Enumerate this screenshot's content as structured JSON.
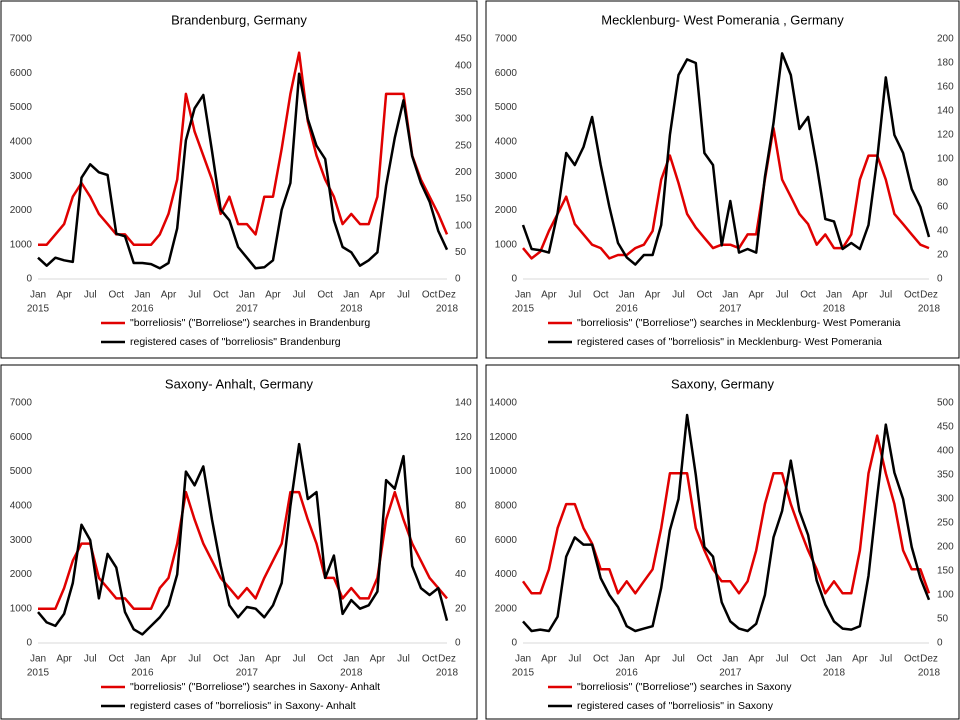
{
  "chart_data": [
    {
      "type": "line",
      "title": "Brandenburg, Germany",
      "categories": [
        "Jan",
        null,
        null,
        "Apr",
        null,
        null,
        "Jul",
        null,
        null,
        "Oct",
        null,
        null,
        "Jan",
        null,
        null,
        "Apr",
        null,
        null,
        "Jul",
        null,
        null,
        "Oct",
        null,
        null,
        "Jan",
        null,
        null,
        "Apr",
        null,
        null,
        "Jul",
        null,
        null,
        "Oct",
        null,
        null,
        "Jan",
        null,
        null,
        "Apr",
        null,
        null,
        "Jul",
        null,
        null,
        "Oct",
        null,
        "Dez"
      ],
      "category_years": [
        "2015",
        null,
        null,
        null,
        null,
        null,
        null,
        null,
        null,
        null,
        null,
        null,
        "2016",
        null,
        null,
        null,
        null,
        null,
        null,
        null,
        null,
        null,
        null,
        null,
        "2017",
        null,
        null,
        null,
        null,
        null,
        null,
        null,
        null,
        null,
        null,
        null,
        "2018",
        null,
        null,
        null,
        null,
        null,
        null,
        null,
        null,
        null,
        null,
        "2018"
      ],
      "ylim": [
        0,
        7000
      ],
      "yticks": [
        0,
        1000,
        2000,
        3000,
        4000,
        5000,
        6000,
        7000
      ],
      "y2lim": [
        0,
        450
      ],
      "y2ticks": [
        0,
        50,
        100,
        150,
        200,
        250,
        300,
        350,
        400,
        450
      ],
      "series": [
        {
          "name": "\"borreliosis\" (\"Borreliose\") searches in Brandenburg",
          "color": "#e00000",
          "values": [
            1000,
            1000,
            1300,
            1600,
            2400,
            2800,
            2400,
            1900,
            1600,
            1300,
            1300,
            1000,
            1000,
            1000,
            1300,
            1900,
            2900,
            5400,
            4300,
            3600,
            2900,
            1900,
            2400,
            1600,
            1600,
            1300,
            2400,
            2400,
            3800,
            5400,
            6600,
            4600,
            3600,
            2900,
            2400,
            1600,
            1900,
            1600,
            1600,
            2400,
            5400,
            5400,
            5400,
            3600,
            2900,
            2400,
            1900,
            1300
          ]
        },
        {
          "name": "registered cases of \"borreliosis\" Brandenburg",
          "color": "#000000",
          "axis": "y2",
          "values": [
            40,
            25,
            40,
            35,
            32,
            190,
            215,
            200,
            195,
            85,
            80,
            30,
            30,
            28,
            20,
            30,
            95,
            260,
            320,
            345,
            240,
            130,
            110,
            60,
            40,
            20,
            22,
            35,
            130,
            180,
            385,
            300,
            250,
            225,
            110,
            60,
            50,
            25,
            35,
            50,
            175,
            265,
            335,
            230,
            180,
            145,
            90,
            55
          ]
        }
      ]
    },
    {
      "type": "line",
      "title": "Mecklenburg- West Pomerania , Germany",
      "categories": [
        "Jan",
        null,
        null,
        "Apr",
        null,
        null,
        "Jul",
        null,
        null,
        "Oct",
        null,
        null,
        "Jan",
        null,
        null,
        "Apr",
        null,
        null,
        "Jul",
        null,
        null,
        "Oct",
        null,
        null,
        "Jan",
        null,
        null,
        "Apr",
        null,
        null,
        "Jul",
        null,
        null,
        "Oct",
        null,
        null,
        "Jan",
        null,
        null,
        "Apr",
        null,
        null,
        "Jul",
        null,
        null,
        "Oct",
        null,
        "Dez"
      ],
      "category_years": [
        "2015",
        null,
        null,
        null,
        null,
        null,
        null,
        null,
        null,
        null,
        null,
        null,
        "2016",
        null,
        null,
        null,
        null,
        null,
        null,
        null,
        null,
        null,
        null,
        null,
        "2017",
        null,
        null,
        null,
        null,
        null,
        null,
        null,
        null,
        null,
        null,
        null,
        "2018",
        null,
        null,
        null,
        null,
        null,
        null,
        null,
        null,
        null,
        null,
        "2018"
      ],
      "ylim": [
        0,
        7000
      ],
      "yticks": [
        0,
        1000,
        2000,
        3000,
        4000,
        5000,
        6000,
        7000
      ],
      "y2lim": [
        0,
        200
      ],
      "y2ticks": [
        0,
        20,
        40,
        60,
        80,
        100,
        120,
        140,
        160,
        180,
        200
      ],
      "series": [
        {
          "name": "\"borreliosis\" (\"Borreliose\") searches in Mecklenburg- West Pomerania",
          "color": "#e00000",
          "values": [
            900,
            600,
            800,
            1400,
            1900,
            2400,
            1600,
            1300,
            1000,
            900,
            600,
            700,
            700,
            900,
            1000,
            1400,
            2900,
            3600,
            2800,
            1900,
            1500,
            1200,
            900,
            1000,
            1000,
            900,
            1300,
            1300,
            2900,
            4400,
            2900,
            2400,
            1900,
            1600,
            1000,
            1300,
            900,
            900,
            1300,
            2900,
            3600,
            3600,
            2900,
            1900,
            1600,
            1300,
            1000,
            900
          ]
        },
        {
          "name": "registered cases of \"borreliosis\" in Mecklenburg- West Pomerania",
          "color": "#000000",
          "axis": "y2",
          "values": [
            45,
            25,
            24,
            22,
            55,
            105,
            95,
            110,
            135,
            95,
            60,
            30,
            18,
            12,
            20,
            20,
            45,
            120,
            170,
            183,
            180,
            105,
            95,
            28,
            65,
            22,
            25,
            22,
            85,
            130,
            188,
            170,
            125,
            135,
            95,
            50,
            48,
            25,
            30,
            25,
            45,
            100,
            168,
            120,
            105,
            75,
            60,
            35
          ]
        }
      ]
    },
    {
      "type": "line",
      "title": "Saxony- Anhalt, Germany",
      "categories": [
        "Jan",
        null,
        null,
        "Apr",
        null,
        null,
        "Jul",
        null,
        null,
        "Oct",
        null,
        null,
        "Jan",
        null,
        null,
        "Apr",
        null,
        null,
        "Jul",
        null,
        null,
        "Oct",
        null,
        null,
        "Jan",
        null,
        null,
        "Apr",
        null,
        null,
        "Jul",
        null,
        null,
        "Oct",
        null,
        null,
        "Jan",
        null,
        null,
        "Apr",
        null,
        null,
        "Jul",
        null,
        null,
        "Oct",
        null,
        "Dez"
      ],
      "category_years": [
        "2015",
        null,
        null,
        null,
        null,
        null,
        null,
        null,
        null,
        null,
        null,
        null,
        "2016",
        null,
        null,
        null,
        null,
        null,
        null,
        null,
        null,
        null,
        null,
        null,
        "2017",
        null,
        null,
        null,
        null,
        null,
        null,
        null,
        null,
        null,
        null,
        null,
        "2018",
        null,
        null,
        null,
        null,
        null,
        null,
        null,
        null,
        null,
        null,
        "2018"
      ],
      "ylim": [
        0,
        7000
      ],
      "yticks": [
        0,
        1000,
        2000,
        3000,
        4000,
        5000,
        6000,
        7000
      ],
      "y2lim": [
        0,
        140
      ],
      "y2ticks": [
        0,
        20,
        40,
        60,
        80,
        100,
        120,
        140
      ],
      "series": [
        {
          "name": "\"borreliosis\" (\"Borreliose\") searches in Saxony- Anhalt",
          "color": "#e00000",
          "values": [
            1000,
            1000,
            1000,
            1600,
            2400,
            2900,
            2900,
            1900,
            1600,
            1300,
            1300,
            1000,
            1000,
            1000,
            1600,
            1900,
            2900,
            4400,
            3600,
            2900,
            2400,
            1900,
            1600,
            1300,
            1600,
            1300,
            1900,
            2400,
            2900,
            4400,
            4400,
            3600,
            2900,
            1900,
            1900,
            1300,
            1600,
            1300,
            1300,
            1900,
            3600,
            4400,
            3600,
            2900,
            2400,
            1900,
            1600,
            1300
          ]
        },
        {
          "name": "registerd cases of \"borreliosis\" in Saxony- Anhalt",
          "color": "#000000",
          "axis": "y2",
          "values": [
            18,
            12,
            10,
            17,
            35,
            69,
            60,
            26,
            52,
            44,
            18,
            8,
            5,
            10,
            15,
            22,
            40,
            100,
            92,
            103,
            72,
            45,
            22,
            15,
            21,
            20,
            15,
            22,
            35,
            80,
            116,
            84,
            88,
            38,
            51,
            17,
            25,
            20,
            22,
            30,
            95,
            90,
            109,
            45,
            32,
            28,
            32,
            13
          ]
        }
      ]
    },
    {
      "type": "line",
      "title": "Saxony, Germany",
      "categories": [
        "Jan",
        null,
        null,
        "Apr",
        null,
        null,
        "Jul",
        null,
        null,
        "Oct",
        null,
        null,
        "Jan",
        null,
        null,
        "Apr",
        null,
        null,
        "Jul",
        null,
        null,
        "Oct",
        null,
        null,
        "Jan",
        null,
        null,
        "Apr",
        null,
        null,
        "Jul",
        null,
        null,
        "Oct",
        null,
        null,
        "Jan",
        null,
        null,
        "Apr",
        null,
        null,
        "Jul",
        null,
        null,
        "Oct",
        null,
        "Dez"
      ],
      "category_years": [
        "2015",
        null,
        null,
        null,
        null,
        null,
        null,
        null,
        null,
        null,
        null,
        null,
        "2016",
        null,
        null,
        null,
        null,
        null,
        null,
        null,
        null,
        null,
        null,
        null,
        "2017",
        null,
        null,
        null,
        null,
        null,
        null,
        null,
        null,
        null,
        null,
        null,
        "2018",
        null,
        null,
        null,
        null,
        null,
        null,
        null,
        null,
        null,
        null,
        "2018"
      ],
      "ylim": [
        0,
        14000
      ],
      "yticks": [
        0,
        2000,
        4000,
        6000,
        8000,
        10000,
        12000,
        14000
      ],
      "y2lim": [
        0,
        500
      ],
      "y2ticks": [
        0,
        50,
        100,
        150,
        200,
        250,
        300,
        350,
        400,
        450,
        500
      ],
      "series": [
        {
          "name": "\"borreliosis\" (\"Borreliose\") searches in Saxony",
          "color": "#e00000",
          "values": [
            3600,
            2900,
            2900,
            4300,
            6700,
            8100,
            8100,
            6700,
            5800,
            4300,
            4300,
            2900,
            3600,
            2900,
            3600,
            4300,
            6700,
            9900,
            9900,
            9900,
            6700,
            5400,
            4300,
            3600,
            3600,
            2900,
            3600,
            5400,
            8100,
            9900,
            9900,
            8100,
            6700,
            5400,
            4300,
            2900,
            3600,
            2900,
            2900,
            5400,
            9900,
            12100,
            9900,
            8100,
            5400,
            4300,
            4300,
            2900
          ]
        },
        {
          "name": "registered cases of \"borreliosis\" in Saxony",
          "color": "#000000",
          "axis": "y2",
          "values": [
            45,
            25,
            28,
            25,
            55,
            180,
            220,
            205,
            205,
            135,
            100,
            75,
            35,
            25,
            30,
            35,
            115,
            235,
            300,
            475,
            350,
            200,
            180,
            85,
            45,
            30,
            25,
            40,
            100,
            220,
            275,
            380,
            275,
            225,
            130,
            80,
            45,
            30,
            28,
            35,
            140,
            305,
            455,
            355,
            300,
            200,
            135,
            90
          ]
        }
      ]
    }
  ]
}
